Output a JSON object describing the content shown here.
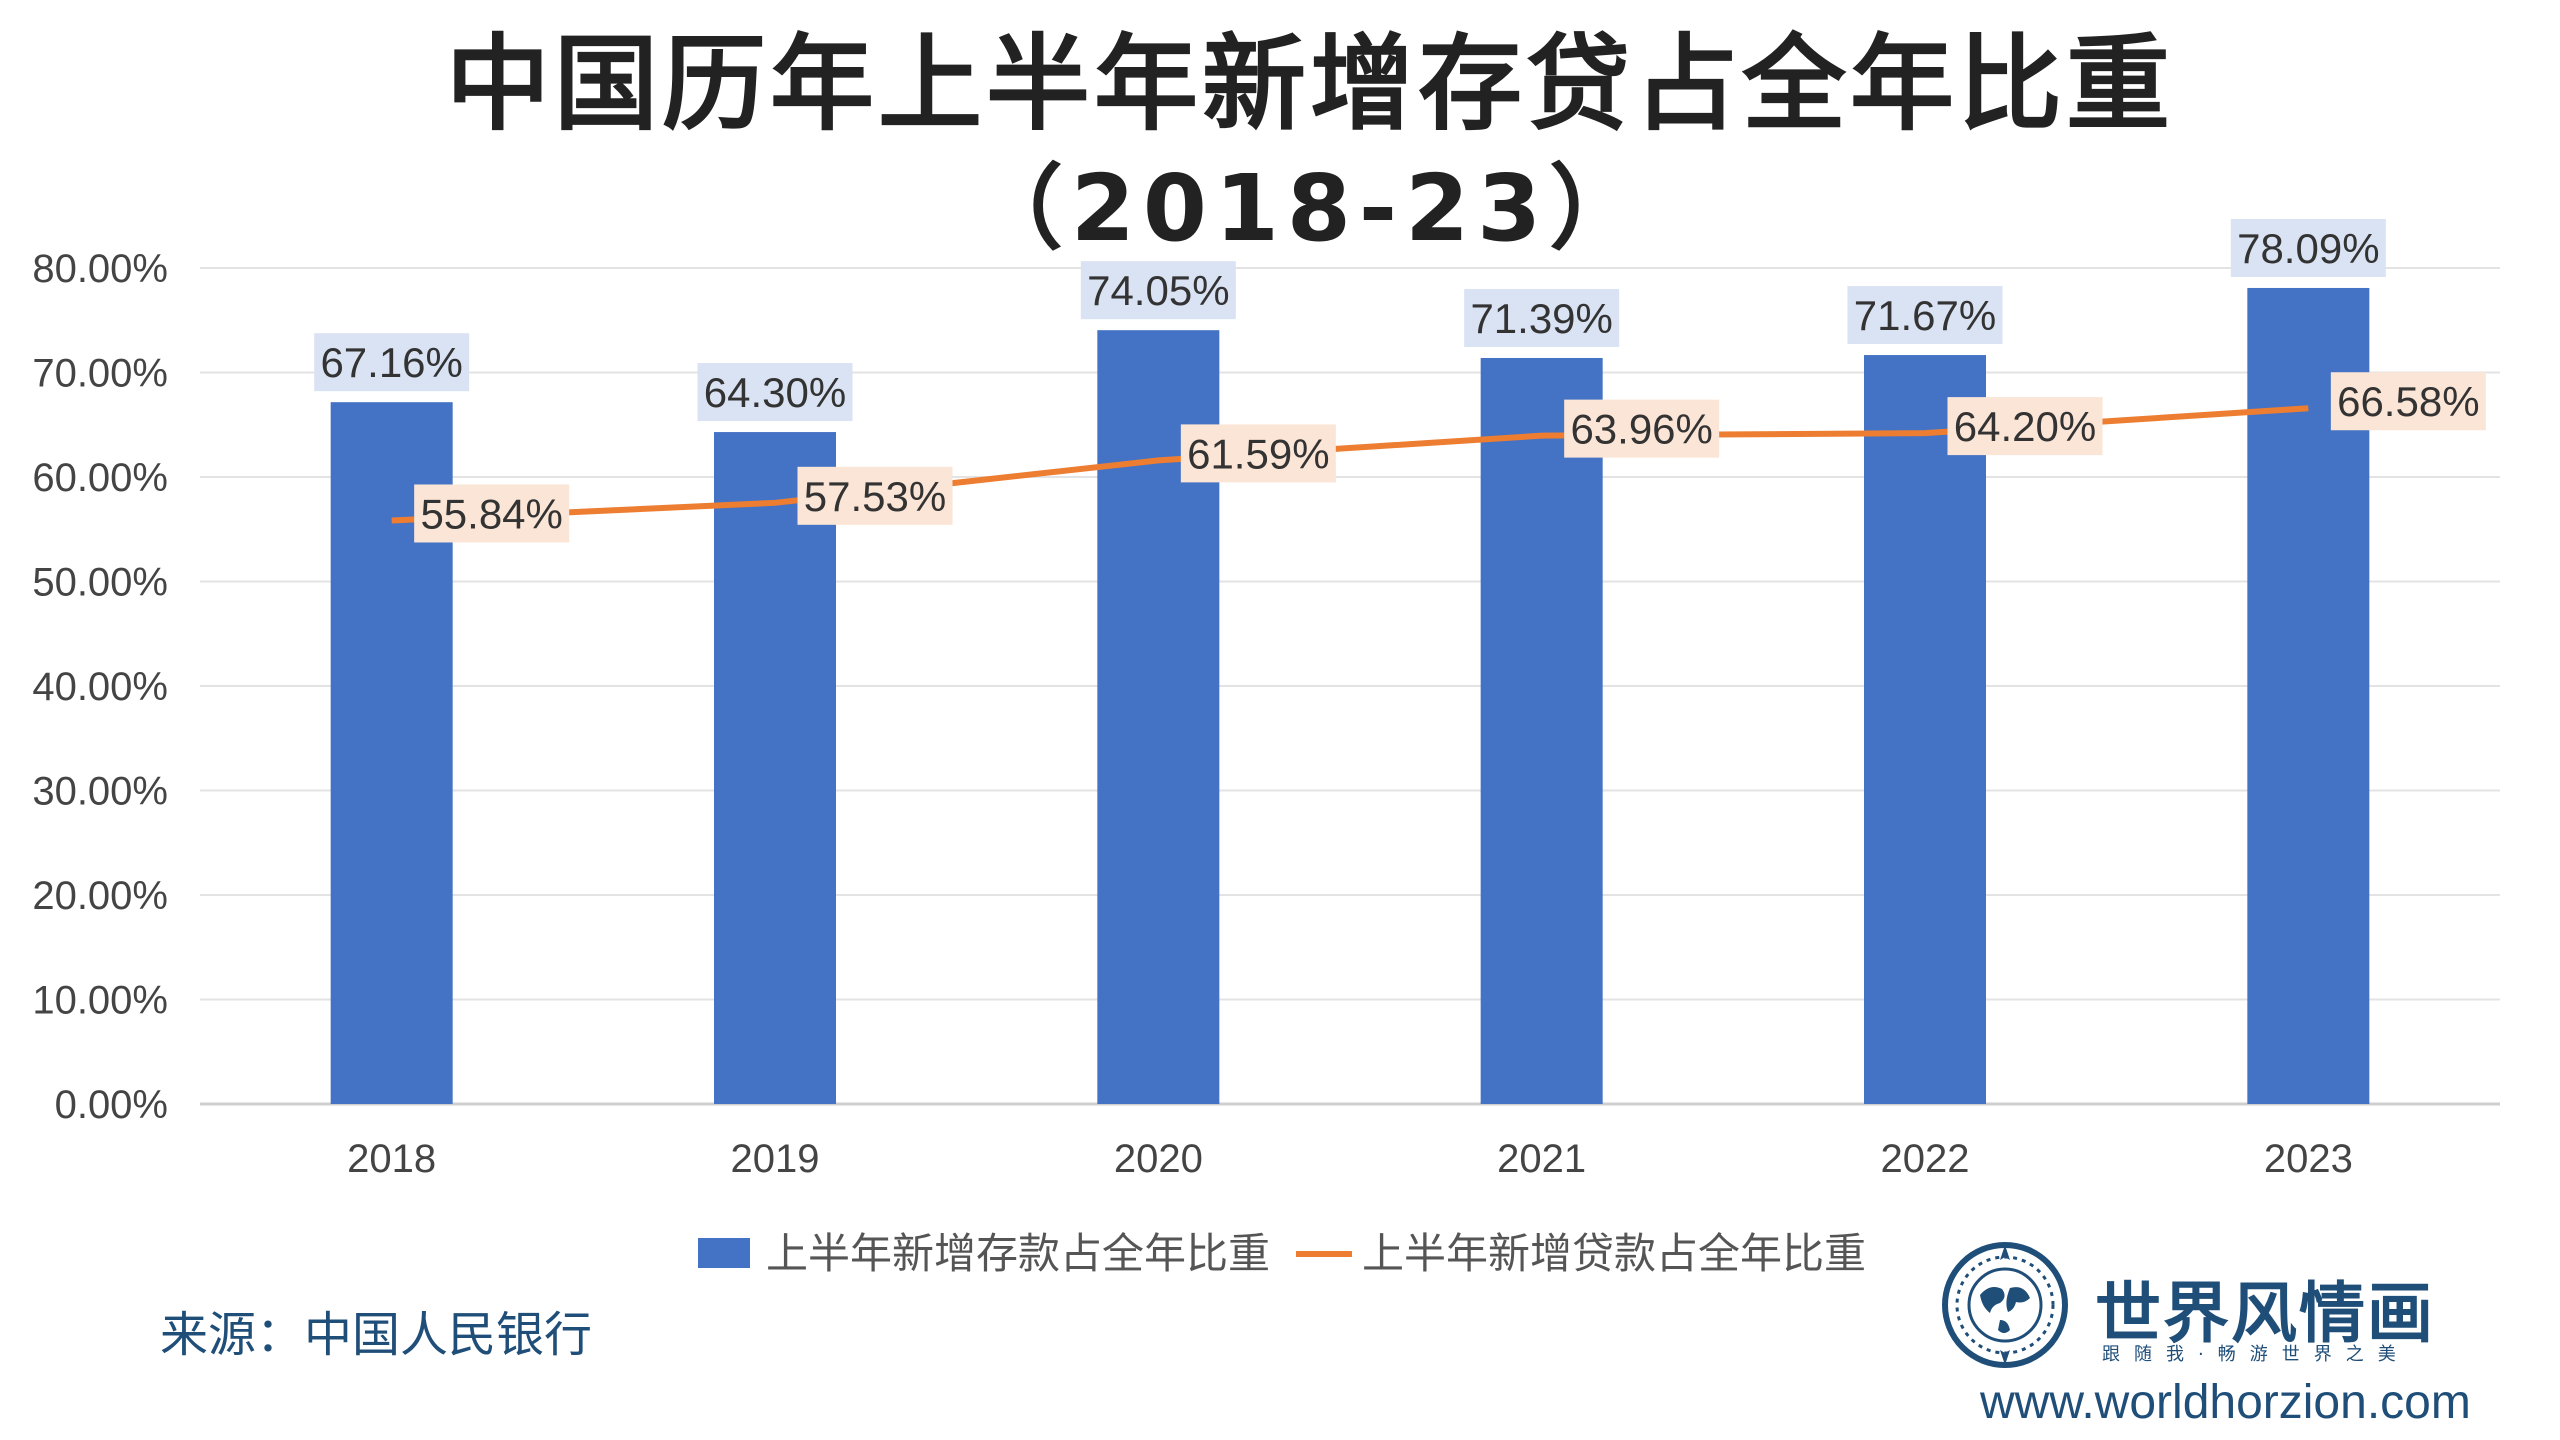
{
  "chart_data": {
    "type": "bar",
    "title": "中国历年上半年新增存贷占全年比重",
    "subtitle": "（2018-23）",
    "categories": [
      "2018",
      "2019",
      "2020",
      "2021",
      "2022",
      "2023"
    ],
    "ylim": [
      0,
      80
    ],
    "yticks": [
      "0.00%",
      "10.00%",
      "20.00%",
      "30.00%",
      "40.00%",
      "50.00%",
      "60.00%",
      "70.00%",
      "80.00%"
    ],
    "grid": true,
    "legend_position": "bottom",
    "series": [
      {
        "name": "上半年新增存款占全年比重",
        "kind": "bar",
        "color": "#4472C4",
        "values": [
          67.16,
          64.3,
          74.05,
          71.39,
          71.67,
          78.09
        ],
        "labels": [
          "67.16%",
          "64.30%",
          "74.05%",
          "71.39%",
          "71.67%",
          "78.09%"
        ],
        "label_bg": "#DAE3F3"
      },
      {
        "name": "上半年新增贷款占全年比重",
        "kind": "line",
        "color": "#ED7D31",
        "values": [
          55.84,
          57.53,
          61.59,
          63.96,
          64.2,
          66.58
        ],
        "labels": [
          "55.84%",
          "57.53%",
          "61.59%",
          "63.96%",
          "64.20%",
          "66.58%"
        ],
        "label_bg": "#FBE5D6"
      }
    ]
  },
  "source": "来源：中国人民银行",
  "logo": {
    "name": "世界风情画",
    "slogan": "跟随我·畅游世界之美",
    "url": "www.worldhorzion.com",
    "icon": "globe-compass-icon"
  }
}
